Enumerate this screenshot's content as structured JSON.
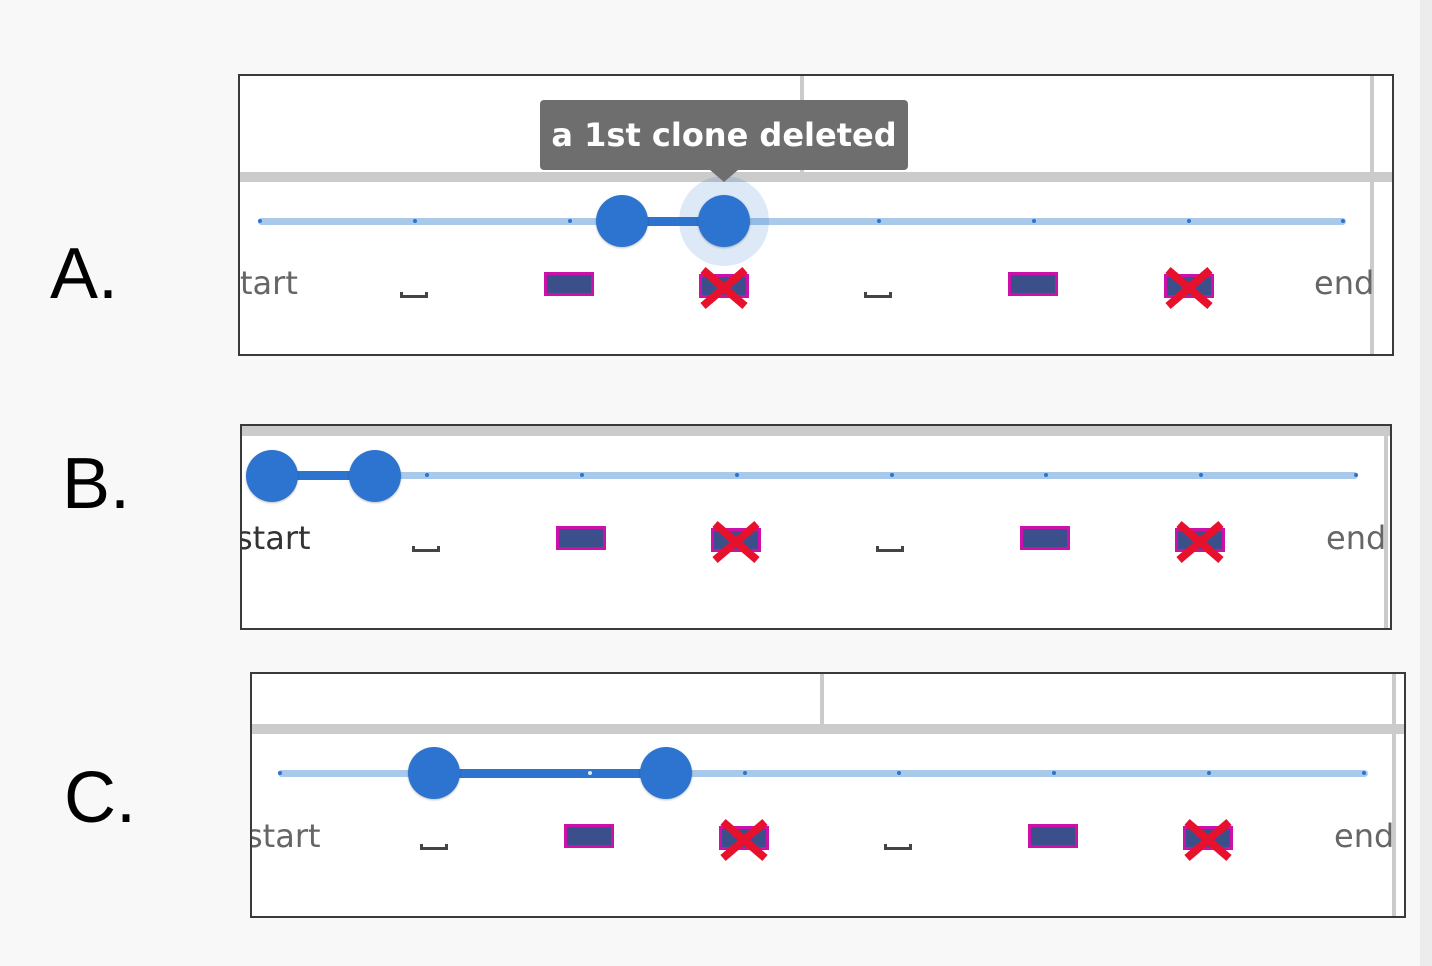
{
  "panels": [
    {
      "label": "A.",
      "tooltip": "a 1st clone deleted",
      "marks": {
        "start": "tart",
        "end": "end"
      },
      "range": {
        "low_step": 2.4,
        "high_step": 3
      }
    },
    {
      "label": "B.",
      "marks": {
        "start": "start",
        "end": "end"
      },
      "range": {
        "low_step": 0.1,
        "high_step": 0.8
      }
    },
    {
      "label": "C.",
      "marks": {
        "start": "start",
        "end": "end"
      },
      "range": {
        "low_step": 1,
        "high_step": 2.5
      }
    }
  ],
  "mark_sequence": [
    "start-label",
    "space-glyph",
    "clone",
    "deleted-clone",
    "space-glyph",
    "clone",
    "deleted-clone",
    "end-label"
  ],
  "colors": {
    "track": "#a9c9eb",
    "active": "#2c74cf",
    "clone_fill": "#3b4f8a",
    "clone_border": "#cc11aa",
    "delete_cross": "#e8112d",
    "tooltip_bg": "#6e6e6e"
  },
  "icons": {
    "space": "space-glyph-icon",
    "deleted": "red-x-cross-icon"
  }
}
